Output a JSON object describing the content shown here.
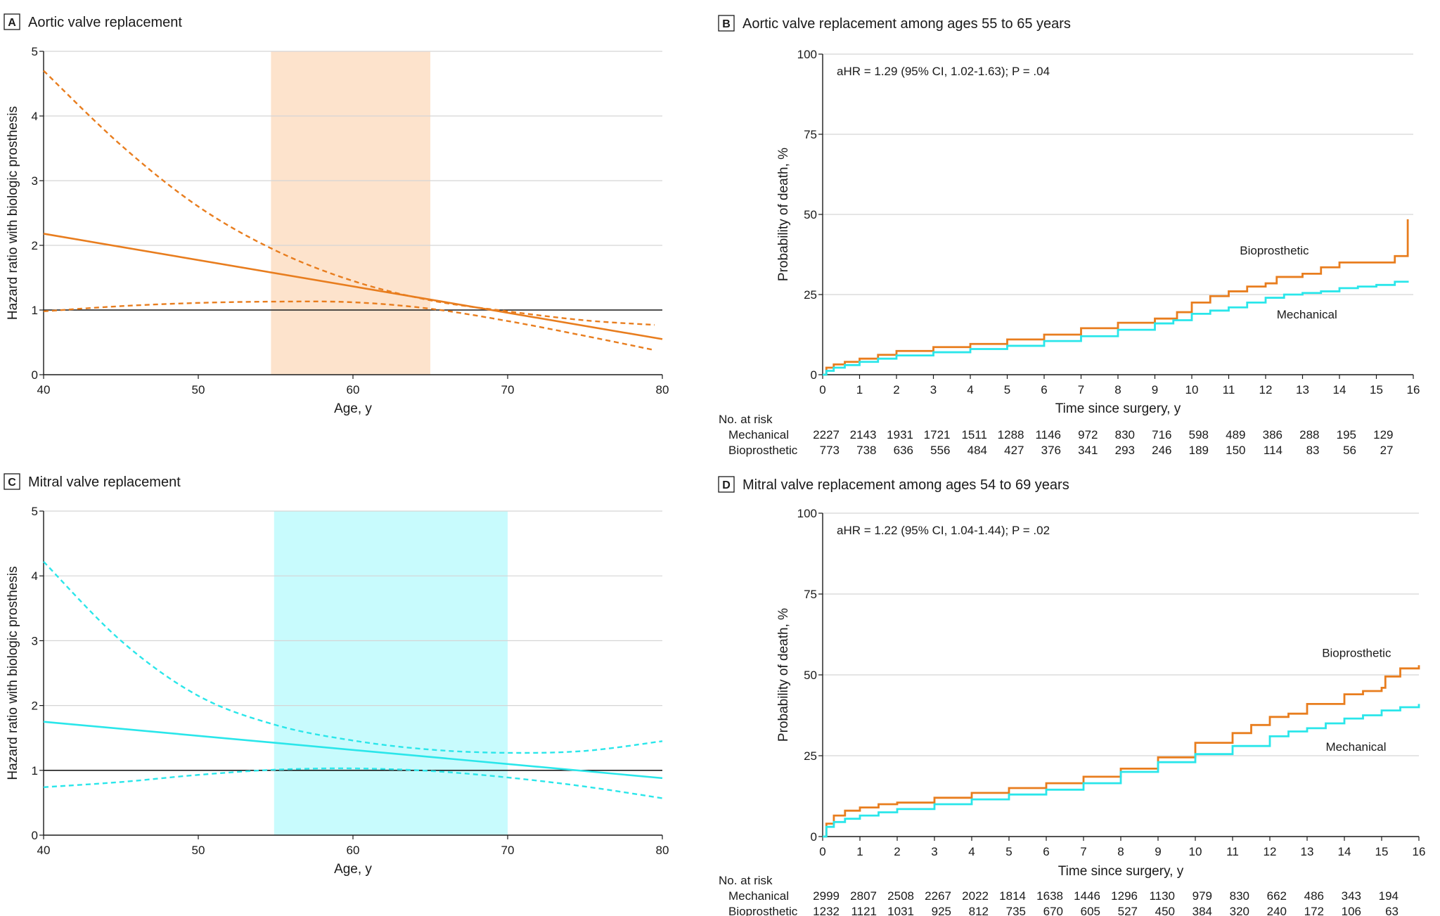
{
  "colors": {
    "aortic": "#e87d1e",
    "mitral": "#2ae6ea",
    "aortic_band": "#fde3cc",
    "mitral_band": "#c8fbfd",
    "grid": "#d5d5d5",
    "ref": "#1a1a1a",
    "bio": "#e87d1e",
    "mech": "#2ae6ea"
  },
  "panels": [
    {
      "id": "A",
      "letter": "A",
      "title": "Aortic valve replacement",
      "kind": "hr",
      "color_key": "aortic",
      "chart_data": {
        "type": "line",
        "xlabel": "Age, y",
        "ylabel": "Hazard ratio with biologic prosthesis",
        "xlim": [
          40,
          80
        ],
        "ylim": [
          0,
          5
        ],
        "xticks": [
          "40",
          "50",
          "60",
          "70",
          "80"
        ],
        "yticks": [
          "0",
          "1",
          "2",
          "3",
          "4",
          "5"
        ],
        "highlight_band": [
          54.7,
          65
        ],
        "reference_line": 1,
        "series": [
          {
            "name": "Hazard ratio",
            "style": "solid",
            "x": [
              40,
              80
            ],
            "y": [
              2.18,
              0.55
            ]
          },
          {
            "name": "Upper 95% CI",
            "style": "dashed",
            "x": [
              40,
              45,
              50,
              55,
              60,
              65,
              70,
              75,
              79.5
            ],
            "y": [
              4.7,
              3.55,
              2.6,
              1.92,
              1.45,
              1.15,
              0.98,
              0.84,
              0.77
            ]
          },
          {
            "name": "Lower 95% CI",
            "style": "dashed",
            "x": [
              40,
              45,
              50,
              55,
              60,
              65,
              70,
              75,
              79.5
            ],
            "y": [
              0.98,
              1.06,
              1.11,
              1.13,
              1.12,
              1.02,
              0.83,
              0.6,
              0.38
            ]
          }
        ]
      }
    },
    {
      "id": "B",
      "letter": "B",
      "title": "Aortic valve replacement among ages 55 to 65 years",
      "kind": "km",
      "chart_data": {
        "type": "line",
        "xlabel": "Time since surgery, y",
        "ylabel": "Probability of death, %",
        "xlim": [
          0,
          16
        ],
        "ylim": [
          0,
          100
        ],
        "xticks": [
          "0",
          "1",
          "2",
          "3",
          "4",
          "5",
          "6",
          "7",
          "8",
          "9",
          "10",
          "11",
          "12",
          "13",
          "14",
          "15",
          "16"
        ],
        "yticks": [
          "0",
          "25",
          "50",
          "75",
          "100"
        ],
        "annotation": "aHR = 1.29 (95% CI, 1.02-1.63); P = .04",
        "series": [
          {
            "name": "Bioprosthetic",
            "color_key": "bio",
            "label_at": [
              11.3,
              37.5
            ],
            "x": [
              0,
              0.1,
              0.3,
              0.6,
              1,
              1.5,
              2,
              3,
              4,
              5,
              6,
              7,
              8,
              9,
              9.5,
              9.6,
              10,
              10.5,
              11,
              11.5,
              12,
              12.3,
              13,
              13.5,
              14,
              14.5,
              15,
              15.5,
              15.85,
              15.85
            ],
            "y": [
              0,
              2.2,
              3.2,
              4,
              5,
              6.2,
              7.4,
              8.6,
              9.6,
              11,
              12.5,
              14.5,
              16.2,
              17.5,
              17.5,
              19.5,
              22.5,
              24.5,
              26,
              27.5,
              28.5,
              30.5,
              31.5,
              33.5,
              35,
              35,
              35,
              37,
              37,
              48.5
            ]
          },
          {
            "name": "Mechanical",
            "color_key": "mech",
            "label_at": [
              12.3,
              17.5
            ],
            "x": [
              0,
              0.1,
              0.3,
              0.6,
              1,
              1.5,
              2,
              3,
              4,
              5,
              6,
              7,
              8,
              9,
              9.5,
              10,
              10.5,
              11,
              11.5,
              12,
              12.5,
              13,
              13.5,
              14,
              14.5,
              15,
              15.5,
              15.85
            ],
            "y": [
              0,
              1.2,
              2.2,
              3,
              4,
              5,
              6,
              7,
              8,
              9,
              10.5,
              12,
              14,
              16,
              17,
              19,
              20,
              21,
              22.5,
              24,
              25,
              25.5,
              26,
              27,
              27.5,
              28,
              29,
              29.3
            ]
          }
        ],
        "risk_table": {
          "header": "No. at risk",
          "rows": [
            {
              "label": "Mechanical",
              "values": [
                "2227",
                "2143",
                "1931",
                "1721",
                "1511",
                "1288",
                "1146",
                "972",
                "830",
                "716",
                "598",
                "489",
                "386",
                "288",
                "195",
                "129"
              ]
            },
            {
              "label": "Bioprosthetic",
              "values": [
                "773",
                "738",
                "636",
                "556",
                "484",
                "427",
                "376",
                "341",
                "293",
                "246",
                "189",
                "150",
                "114",
                "83",
                "56",
                "27"
              ]
            }
          ]
        }
      }
    },
    {
      "id": "C",
      "letter": "C",
      "title": "Mitral valve replacement",
      "kind": "hr",
      "color_key": "mitral",
      "chart_data": {
        "type": "line",
        "xlabel": "Age, y",
        "ylabel": "Hazard ratio with biologic prosthesis",
        "xlim": [
          40,
          80
        ],
        "ylim": [
          0,
          5
        ],
        "xticks": [
          "40",
          "50",
          "60",
          "70",
          "80"
        ],
        "yticks": [
          "0",
          "1",
          "2",
          "3",
          "4",
          "5"
        ],
        "highlight_band": [
          54.9,
          70
        ],
        "reference_line": 1,
        "series": [
          {
            "name": "Hazard ratio",
            "style": "solid",
            "x": [
              40,
              80
            ],
            "y": [
              1.75,
              0.88
            ]
          },
          {
            "name": "Upper 95% CI",
            "style": "dashed",
            "x": [
              40,
              45,
              50,
              55,
              60,
              65,
              70,
              75,
              80
            ],
            "y": [
              4.22,
              3.0,
              2.15,
              1.7,
              1.46,
              1.32,
              1.27,
              1.3,
              1.45
            ]
          },
          {
            "name": "Lower 95% CI",
            "style": "dashed",
            "x": [
              40,
              45,
              50,
              55,
              60,
              65,
              70,
              75,
              80
            ],
            "y": [
              0.74,
              0.82,
              0.93,
              1.01,
              1.03,
              0.99,
              0.89,
              0.75,
              0.57
            ]
          }
        ]
      }
    },
    {
      "id": "D",
      "letter": "D",
      "title": "Mitral valve replacement among ages 54 to 69 years",
      "kind": "km",
      "chart_data": {
        "type": "line",
        "xlabel": "Time since surgery, y",
        "ylabel": "Probability of death, %",
        "xlim": [
          0,
          16
        ],
        "ylim": [
          0,
          100
        ],
        "xticks": [
          "0",
          "1",
          "2",
          "3",
          "4",
          "5",
          "6",
          "7",
          "8",
          "9",
          "10",
          "11",
          "12",
          "13",
          "14",
          "15",
          "16"
        ],
        "yticks": [
          "0",
          "25",
          "50",
          "75",
          "100"
        ],
        "annotation": "aHR = 1.22 (95% CI, 1.04-1.44); P = .02",
        "series": [
          {
            "name": "Bioprosthetic",
            "color_key": "bio",
            "label_at": [
              13.4,
              55.5
            ],
            "x": [
              0,
              0.1,
              0.3,
              0.6,
              1,
              1.5,
              2,
              3,
              4,
              5,
              6,
              7,
              8,
              9,
              10,
              11,
              11.5,
              12,
              12.5,
              13,
              14,
              14.5,
              15,
              15.1,
              15.5,
              16
            ],
            "y": [
              0,
              4,
              6.5,
              8,
              9,
              10,
              10.5,
              12,
              13.5,
              15,
              16.5,
              18.5,
              21,
              24.5,
              29,
              32,
              34.5,
              37,
              38,
              41,
              44,
              45,
              46,
              49.5,
              52,
              53
            ]
          },
          {
            "name": "Mechanical",
            "color_key": "mech",
            "label_at": [
              13.5,
              26.5
            ],
            "x": [
              0,
              0.1,
              0.3,
              0.6,
              1,
              1.5,
              2,
              3,
              4,
              5,
              6,
              7,
              8,
              9,
              10,
              11,
              12,
              12.5,
              13,
              13.5,
              14,
              14.5,
              15,
              15.5,
              16
            ],
            "y": [
              0,
              3,
              4.5,
              5.5,
              6.5,
              7.5,
              8.5,
              10,
              11.5,
              13,
              14.5,
              16.5,
              20,
              23,
              25.5,
              28,
              31,
              32.5,
              33.5,
              35,
              36.5,
              37.5,
              39,
              40,
              41
            ]
          }
        ],
        "risk_table": {
          "header": "No. at risk",
          "rows": [
            {
              "label": "Mechanical",
              "values": [
                "2999",
                "2807",
                "2508",
                "2267",
                "2022",
                "1814",
                "1638",
                "1446",
                "1296",
                "1130",
                "979",
                "830",
                "662",
                "486",
                "343",
                "194"
              ]
            },
            {
              "label": "Bioprosthetic",
              "values": [
                "1232",
                "1121",
                "1031",
                "925",
                "812",
                "735",
                "670",
                "605",
                "527",
                "450",
                "384",
                "320",
                "240",
                "172",
                "106",
                "63"
              ]
            }
          ]
        }
      }
    }
  ]
}
